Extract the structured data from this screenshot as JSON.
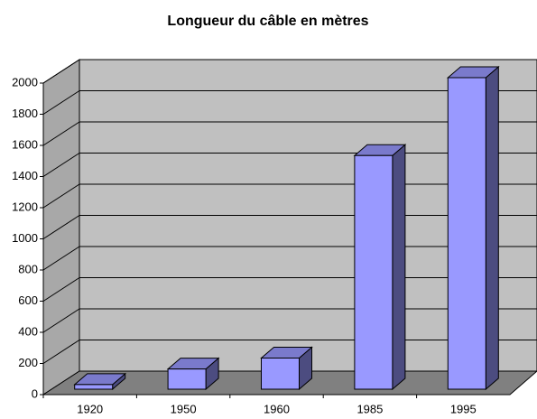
{
  "chart_data": {
    "type": "bar3d",
    "title": "Longueur du câble en mètres",
    "categories": [
      "1920",
      "1950",
      "1960",
      "1985",
      "1995"
    ],
    "values": [
      30,
      130,
      200,
      1500,
      2000
    ],
    "color": "#9999ff",
    "ylim": [
      0,
      2000
    ],
    "yticks": [
      0,
      200,
      400,
      600,
      800,
      1000,
      1200,
      1400,
      1600,
      1800,
      2000
    ],
    "grid": true
  }
}
